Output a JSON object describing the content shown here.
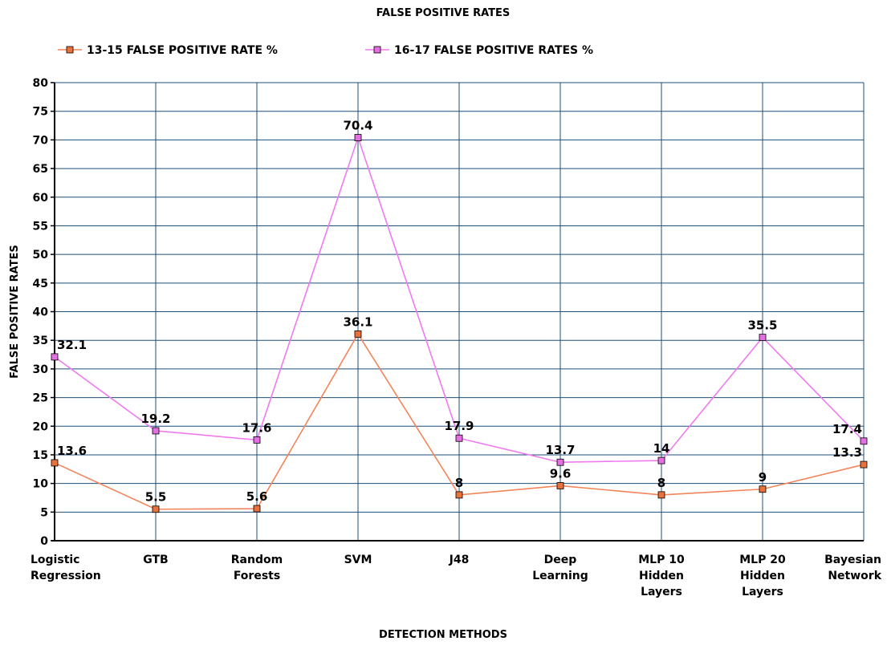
{
  "chart_data": {
    "type": "line",
    "title": "FALSE POSITIVE RATES",
    "xlabel": "DETECTION METHODS",
    "ylabel": "FALSE POSITIVE RATES",
    "ylim": [
      0,
      80
    ],
    "ytick_step": 5,
    "grid": true,
    "legend_position": "top",
    "categories": [
      [
        "Logistic",
        "Regression"
      ],
      [
        "GTB"
      ],
      [
        "Random",
        "Forests"
      ],
      [
        "SVM"
      ],
      [
        "J48"
      ],
      [
        "Deep",
        "Learning"
      ],
      [
        "MLP 10",
        "Hidden",
        "Layers"
      ],
      [
        "MLP 20",
        "Hidden",
        "Layers"
      ],
      [
        "Bayesian",
        "Network"
      ]
    ],
    "series": [
      {
        "name": "13-15 FALSE POSITIVE RATE %",
        "color": "#f4845a",
        "marker_color": "#e8723c",
        "values": [
          13.6,
          5.5,
          5.6,
          36.1,
          8,
          9.6,
          8,
          9,
          13.3
        ]
      },
      {
        "name": "16-17 FALSE POSITIVE RATES %",
        "color": "#f07af0",
        "marker_color": "#e36fe3",
        "values": [
          32.1,
          19.2,
          17.6,
          70.4,
          17.9,
          13.7,
          14,
          35.5,
          17.4
        ]
      }
    ],
    "grid_color": "#1d4f78",
    "axis_color": "#000000"
  }
}
